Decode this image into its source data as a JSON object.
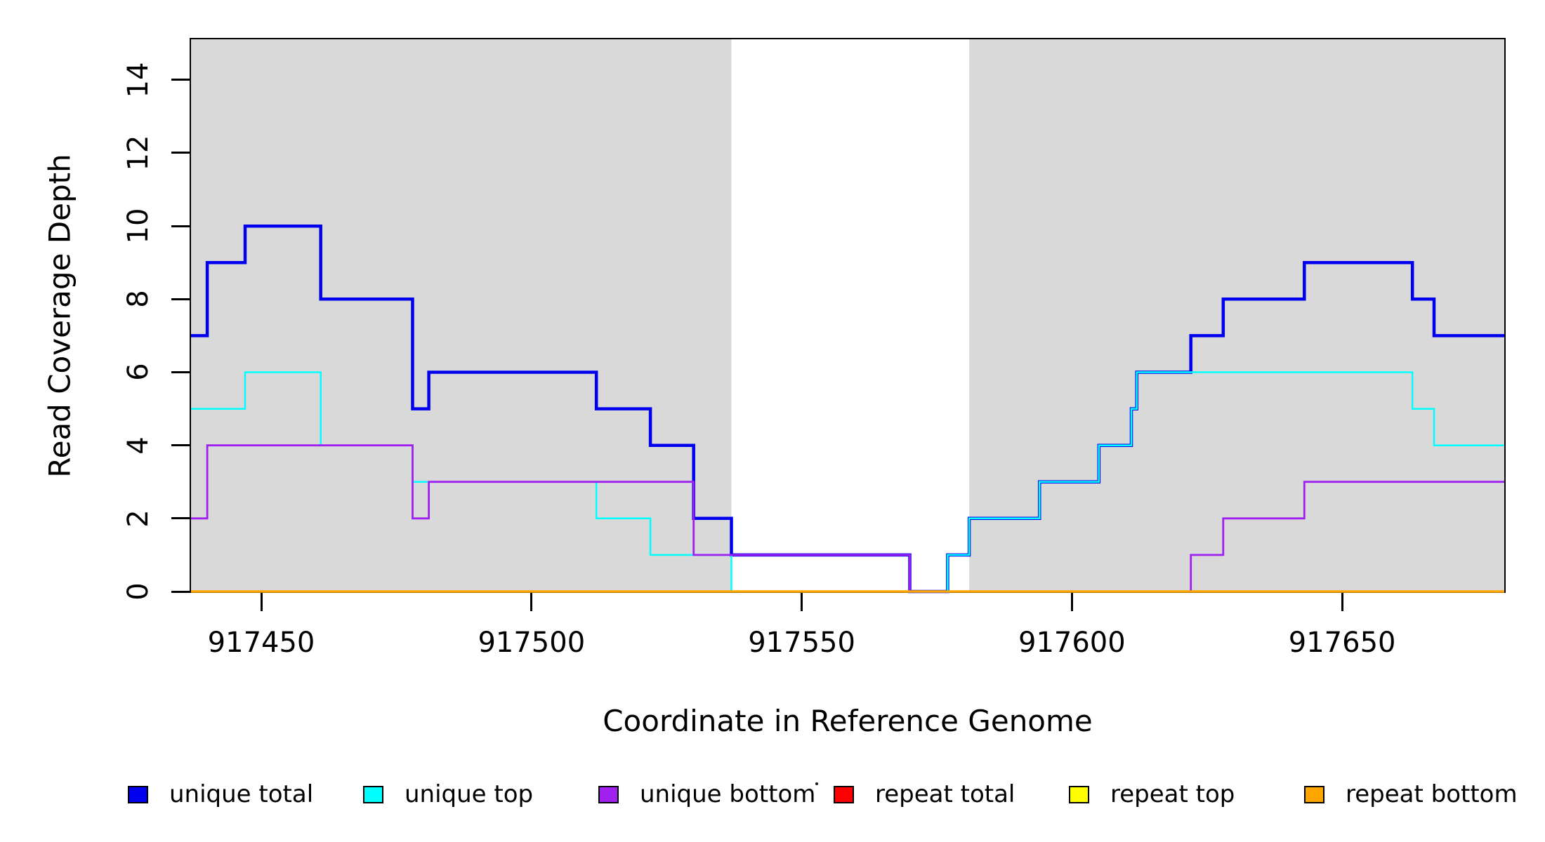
{
  "figure": {
    "background": "#ffffff",
    "box_color": "#000000"
  },
  "chart_data": {
    "type": "line",
    "subtype": "step",
    "title": "",
    "xlabel": "Coordinate in Reference Genome",
    "ylabel": "Read Coverage Depth",
    "xlim": [
      917437,
      917680
    ],
    "ylim": [
      0,
      15.11
    ],
    "x_end": 917680,
    "grid": false,
    "xticks": [
      {
        "value": 917450,
        "label": "917450"
      },
      {
        "value": 917500,
        "label": "917500"
      },
      {
        "value": 917550,
        "label": "917550"
      },
      {
        "value": 917600,
        "label": "917600"
      },
      {
        "value": 917650,
        "label": "917650"
      }
    ],
    "yticks": [
      {
        "value": 0,
        "label": "0"
      },
      {
        "value": 2,
        "label": "2"
      },
      {
        "value": 4,
        "label": "4"
      },
      {
        "value": 6,
        "label": "6"
      },
      {
        "value": 8,
        "label": "8"
      },
      {
        "value": 10,
        "label": "10"
      },
      {
        "value": 12,
        "label": "12"
      },
      {
        "value": 14,
        "label": "14"
      }
    ],
    "shade": {
      "color": "#D9D9D9",
      "regions": [
        [
          917437,
          917537
        ],
        [
          917581,
          917680
        ]
      ]
    },
    "series": [
      {
        "id": "unique-total",
        "name": "unique total",
        "color": "#0000EE",
        "lwd": 4.5,
        "points": [
          [
            917437,
            7
          ],
          [
            917440,
            9
          ],
          [
            917447,
            10
          ],
          [
            917461,
            8
          ],
          [
            917478,
            5
          ],
          [
            917481,
            6
          ],
          [
            917512,
            5
          ],
          [
            917522,
            4
          ],
          [
            917530,
            2
          ],
          [
            917537,
            1
          ],
          [
            917570,
            0
          ],
          [
            917577,
            1
          ],
          [
            917581,
            2
          ],
          [
            917594,
            3
          ],
          [
            917605,
            4
          ],
          [
            917611,
            5
          ],
          [
            917612,
            6
          ],
          [
            917622,
            7
          ],
          [
            917628,
            8
          ],
          [
            917643,
            9
          ],
          [
            917663,
            8
          ],
          [
            917667,
            7
          ]
        ]
      },
      {
        "id": "unique-top",
        "name": "unique top",
        "color": "#00FFFF",
        "lwd": 2.5,
        "points": [
          [
            917437,
            5
          ],
          [
            917447,
            6
          ],
          [
            917461,
            4
          ],
          [
            917478,
            3
          ],
          [
            917512,
            2
          ],
          [
            917522,
            1
          ],
          [
            917537,
            0
          ],
          [
            917577,
            1
          ],
          [
            917581,
            2
          ],
          [
            917594,
            3
          ],
          [
            917605,
            4
          ],
          [
            917611,
            5
          ],
          [
            917612,
            6
          ],
          [
            917663,
            5
          ],
          [
            917667,
            4
          ]
        ]
      },
      {
        "id": "unique-bottom",
        "name": "unique bottom",
        "color": "#A020F0",
        "lwd": 2.8,
        "points": [
          [
            917437,
            2
          ],
          [
            917440,
            4
          ],
          [
            917478,
            2
          ],
          [
            917481,
            3
          ],
          [
            917530,
            1
          ],
          [
            917570,
            0
          ],
          [
            917622,
            1
          ],
          [
            917628,
            2
          ],
          [
            917643,
            3
          ]
        ]
      },
      {
        "id": "repeat-total",
        "name": "repeat total",
        "color": "#FF0000",
        "lwd": 2.5,
        "points": [
          [
            917437,
            0
          ]
        ]
      },
      {
        "id": "repeat-top",
        "name": "repeat top",
        "color": "#FFFF00",
        "lwd": 2.5,
        "points": [
          [
            917437,
            0
          ]
        ]
      },
      {
        "id": "repeat-bottom",
        "name": "repeat bottom",
        "color": "#FFA500",
        "lwd": 3.5,
        "points": [
          [
            917437,
            0
          ]
        ]
      }
    ],
    "legend": {
      "position": "bottom",
      "items": [
        {
          "label": "unique total",
          "color": "#0000EE"
        },
        {
          "label": "unique top",
          "color": "#00FFFF"
        },
        {
          "label": "unique bottom",
          "color": "#A020F0"
        },
        {
          "label": "repeat total",
          "color": "#FF0000"
        },
        {
          "label": "repeat top",
          "color": "#FFFF00"
        },
        {
          "label": "repeat bottom",
          "color": "#FFA500"
        }
      ]
    }
  }
}
